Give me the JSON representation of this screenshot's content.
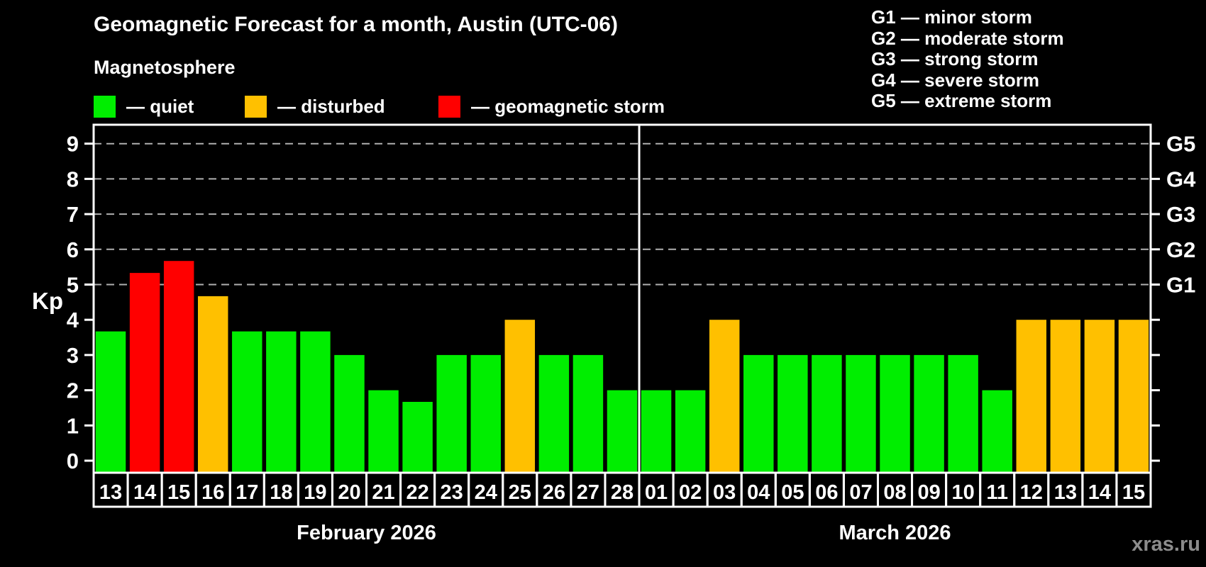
{
  "title": "Geomagnetic Forecast for a month, Austin (UTC-06)",
  "subtitle": "Magnetosphere",
  "legend": [
    {
      "label": "— quiet",
      "status": "quiet",
      "color": "#00ee00"
    },
    {
      "label": "— disturbed",
      "status": "disturbed",
      "color": "#ffc000"
    },
    {
      "label": "— geomagnetic storm",
      "status": "storm",
      "color": "#ff0000"
    }
  ],
  "g_legend": [
    "G1 — minor storm",
    "G2 — moderate storm",
    "G3 — strong storm",
    "G4 — severe storm",
    "G5 — extreme storm"
  ],
  "watermark": "xras.ru",
  "chart_data": {
    "type": "bar",
    "title": "Geomagnetic Forecast for a month, Austin (UTC-06)",
    "subtitle": "Magnetosphere",
    "ylabel": "Kp",
    "ylim": [
      0,
      9
    ],
    "yticks": [
      0,
      1,
      2,
      3,
      4,
      5,
      6,
      7,
      8,
      9
    ],
    "gridlines_at": [
      5,
      6,
      7,
      8,
      9
    ],
    "grid_style": "dashed",
    "legend_position": "top",
    "right_axis_labels": [
      {
        "label": "G1",
        "kp": 5
      },
      {
        "label": "G2",
        "kp": 6
      },
      {
        "label": "G3",
        "kp": 7
      },
      {
        "label": "G4",
        "kp": 8
      },
      {
        "label": "G5",
        "kp": 9
      }
    ],
    "colors": {
      "quiet": "#00ee00",
      "disturbed": "#ffc000",
      "storm": "#ff0000"
    },
    "months": [
      {
        "name": "February 2026",
        "days": [
          {
            "day": "13",
            "kp": 3.67,
            "status": "quiet"
          },
          {
            "day": "14",
            "kp": 5.33,
            "status": "storm"
          },
          {
            "day": "15",
            "kp": 5.67,
            "status": "storm"
          },
          {
            "day": "16",
            "kp": 4.67,
            "status": "disturbed"
          },
          {
            "day": "17",
            "kp": 3.67,
            "status": "quiet"
          },
          {
            "day": "18",
            "kp": 3.67,
            "status": "quiet"
          },
          {
            "day": "19",
            "kp": 3.67,
            "status": "quiet"
          },
          {
            "day": "20",
            "kp": 3,
            "status": "quiet"
          },
          {
            "day": "21",
            "kp": 2,
            "status": "quiet"
          },
          {
            "day": "22",
            "kp": 1.67,
            "status": "quiet"
          },
          {
            "day": "23",
            "kp": 3,
            "status": "quiet"
          },
          {
            "day": "24",
            "kp": 3,
            "status": "quiet"
          },
          {
            "day": "25",
            "kp": 4,
            "status": "disturbed"
          },
          {
            "day": "26",
            "kp": 3,
            "status": "quiet"
          },
          {
            "day": "27",
            "kp": 3,
            "status": "quiet"
          },
          {
            "day": "28",
            "kp": 2,
            "status": "quiet"
          }
        ]
      },
      {
        "name": "March 2026",
        "days": [
          {
            "day": "01",
            "kp": 2,
            "status": "quiet"
          },
          {
            "day": "02",
            "kp": 2,
            "status": "quiet"
          },
          {
            "day": "03",
            "kp": 4,
            "status": "disturbed"
          },
          {
            "day": "04",
            "kp": 3,
            "status": "quiet"
          },
          {
            "day": "05",
            "kp": 3,
            "status": "quiet"
          },
          {
            "day": "06",
            "kp": 3,
            "status": "quiet"
          },
          {
            "day": "07",
            "kp": 3,
            "status": "quiet"
          },
          {
            "day": "08",
            "kp": 3,
            "status": "quiet"
          },
          {
            "day": "09",
            "kp": 3,
            "status": "quiet"
          },
          {
            "day": "10",
            "kp": 3,
            "status": "quiet"
          },
          {
            "day": "11",
            "kp": 2,
            "status": "quiet"
          },
          {
            "day": "12",
            "kp": 4,
            "status": "disturbed"
          },
          {
            "day": "13",
            "kp": 4,
            "status": "disturbed"
          },
          {
            "day": "14",
            "kp": 4,
            "status": "disturbed"
          },
          {
            "day": "15",
            "kp": 4,
            "status": "disturbed"
          }
        ]
      }
    ]
  }
}
